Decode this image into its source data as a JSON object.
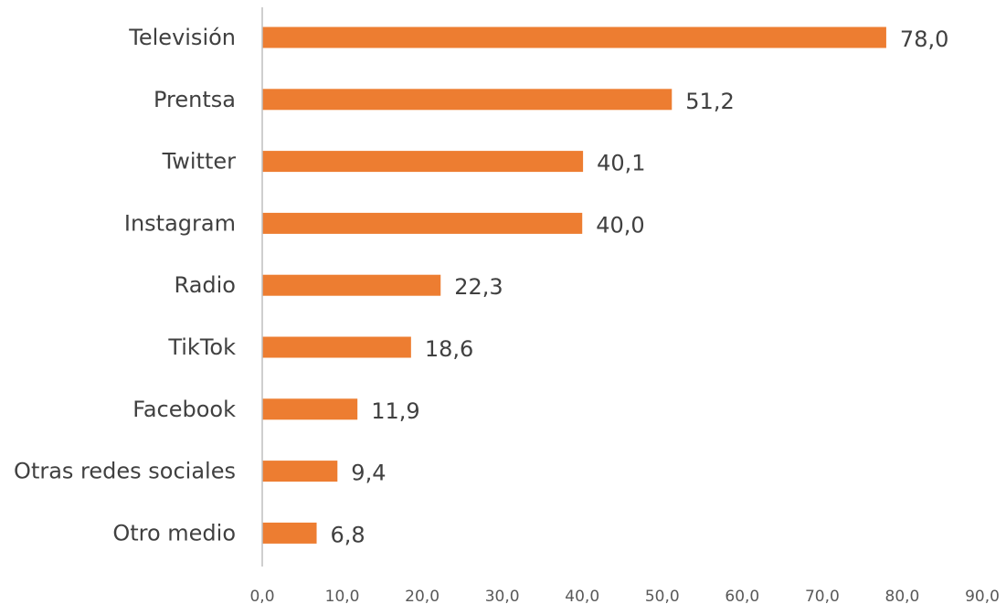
{
  "chart_data": {
    "type": "bar",
    "orientation": "horizontal",
    "title": "",
    "xlabel": "",
    "ylabel": "",
    "xlim": [
      0,
      90
    ],
    "grid": false,
    "legend": "none",
    "bar_color": "#ed7d31",
    "categories": [
      "Televisión",
      "Prentsa",
      "Twitter",
      "Instagram",
      "Radio",
      "TikTok",
      "Facebook",
      "Otras redes sociales",
      "Otro medio"
    ],
    "values": [
      78.0,
      51.2,
      40.1,
      40.0,
      22.3,
      18.6,
      11.9,
      9.4,
      6.8
    ],
    "value_labels": [
      "78,0",
      "51,2",
      "40,1",
      "40,0",
      "22,3",
      "18,6",
      "11,9",
      "9,4",
      "6,8"
    ],
    "ticks": [
      0,
      10,
      20,
      30,
      40,
      50,
      60,
      70,
      80,
      90
    ],
    "tick_labels": [
      "0,0",
      "10,0",
      "20,0",
      "30,0",
      "40,0",
      "50,0",
      "60,0",
      "70,0",
      "80,0",
      "90,0"
    ]
  }
}
